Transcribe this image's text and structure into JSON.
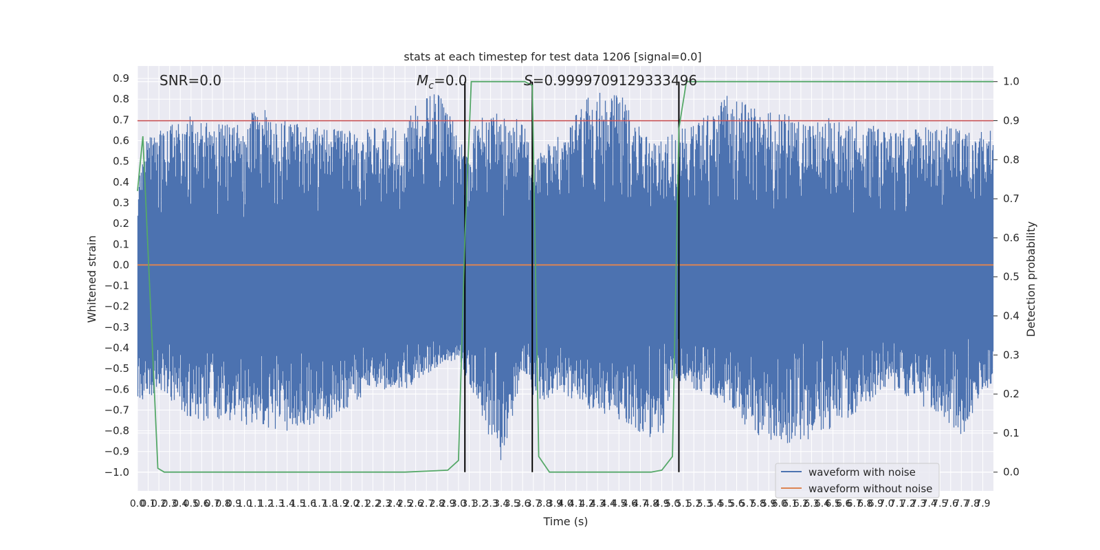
{
  "chart_data": {
    "type": "line",
    "title": "stats at each timestep for test data 1206 [signal=0.0]",
    "xlabel": "Time (s)",
    "ylabel": "Whitened strain",
    "y2label": "Detection probability",
    "xlim": [
      0.0,
      8.0
    ],
    "ylim": [
      -1.09,
      0.96
    ],
    "y2lim": [
      -0.048,
      1.04
    ],
    "x_ticks": [
      0.0,
      0.1,
      0.2,
      0.3,
      0.4,
      0.5,
      0.6,
      0.7,
      0.8,
      0.9,
      1.0,
      1.1,
      1.2,
      1.3,
      1.4,
      1.5,
      1.6,
      1.7,
      1.8,
      1.9,
      2.0,
      2.1,
      2.2,
      2.3,
      2.4,
      2.5,
      2.6,
      2.7,
      2.8,
      2.9,
      3.0,
      3.1,
      3.2,
      3.3,
      3.4,
      3.5,
      3.6,
      3.7,
      3.8,
      3.9,
      4.0,
      4.1,
      4.2,
      4.3,
      4.4,
      4.5,
      4.6,
      4.7,
      4.8,
      4.9,
      5.0,
      5.1,
      5.2,
      5.3,
      5.4,
      5.5,
      5.6,
      5.7,
      5.8,
      5.9,
      6.0,
      6.1,
      6.2,
      6.3,
      6.4,
      6.5,
      6.6,
      6.7,
      6.8,
      6.9,
      7.0,
      7.1,
      7.2,
      7.3,
      7.4,
      7.5,
      7.6,
      7.7,
      7.8,
      7.9
    ],
    "y_ticks": [
      0.9,
      0.8,
      0.7,
      0.6,
      0.5,
      0.4,
      0.3,
      0.2,
      0.1,
      0.0,
      -0.1,
      -0.2,
      -0.3,
      -0.4,
      -0.5,
      -0.6,
      -0.7,
      -0.8,
      -0.9,
      -1.0
    ],
    "y2_ticks": [
      1.0,
      0.9,
      0.8,
      0.7,
      0.6,
      0.5,
      0.4,
      0.3,
      0.2,
      0.1,
      0.0
    ],
    "annotations": {
      "snr": "SNR=0.0",
      "mc_symbol": "M",
      "mc_sub": "c",
      "mc_value": "=0.0",
      "s_symbol": "S",
      "s_value": "=0.9999709129333496"
    },
    "legend": {
      "position": "lower-right",
      "entries": [
        "waveform with noise",
        "waveform without noise"
      ]
    },
    "series": [
      {
        "name": "waveform with noise",
        "color": "#4c72b0",
        "envelope_upper": [
          [
            0.0,
            0.35
          ],
          [
            0.05,
            0.6
          ],
          [
            0.2,
            0.65
          ],
          [
            0.5,
            0.72
          ],
          [
            1.0,
            0.67
          ],
          [
            1.1,
            0.77
          ],
          [
            1.5,
            0.68
          ],
          [
            2.0,
            0.65
          ],
          [
            2.5,
            0.7
          ],
          [
            2.7,
            0.86
          ],
          [
            2.9,
            0.8
          ],
          [
            3.0,
            0.6
          ],
          [
            3.3,
            0.75
          ],
          [
            3.6,
            0.7
          ],
          [
            3.7,
            0.5
          ],
          [
            4.0,
            0.68
          ],
          [
            4.3,
            0.86
          ],
          [
            4.5,
            0.85
          ],
          [
            4.7,
            0.67
          ],
          [
            4.9,
            0.6
          ],
          [
            5.0,
            0.65
          ],
          [
            5.3,
            0.72
          ],
          [
            5.5,
            0.82
          ],
          [
            5.9,
            0.75
          ],
          [
            6.3,
            0.7
          ],
          [
            6.6,
            0.72
          ],
          [
            7.0,
            0.65
          ],
          [
            7.5,
            0.68
          ],
          [
            7.9,
            0.65
          ]
        ],
        "envelope_lower": [
          [
            0.0,
            -0.7
          ],
          [
            0.2,
            -0.6
          ],
          [
            0.5,
            -0.75
          ],
          [
            1.0,
            -0.77
          ],
          [
            1.4,
            -0.8
          ],
          [
            1.8,
            -0.75
          ],
          [
            2.2,
            -0.6
          ],
          [
            2.5,
            -0.6
          ],
          [
            2.8,
            -0.5
          ],
          [
            3.0,
            -0.45
          ],
          [
            3.4,
            -1.0
          ],
          [
            3.6,
            -0.5
          ],
          [
            3.7,
            -0.65
          ],
          [
            4.0,
            -0.65
          ],
          [
            4.5,
            -0.75
          ],
          [
            4.9,
            -0.87
          ],
          [
            5.0,
            -0.55
          ],
          [
            5.2,
            -0.6
          ],
          [
            5.5,
            -0.67
          ],
          [
            5.8,
            -0.84
          ],
          [
            6.2,
            -0.87
          ],
          [
            6.6,
            -0.77
          ],
          [
            7.0,
            -0.6
          ],
          [
            7.5,
            -0.72
          ],
          [
            7.7,
            -0.84
          ],
          [
            7.9,
            -0.6
          ]
        ]
      },
      {
        "name": "waveform without noise",
        "color": "#dd8452",
        "x": [
          0.0,
          8.0
        ],
        "y": [
          0.0,
          0.0
        ]
      },
      {
        "name": "detection probability",
        "color": "#55a868",
        "axis": "right",
        "x": [
          0.0,
          0.05,
          0.19,
          0.25,
          0.5,
          1.0,
          1.5,
          2.0,
          2.5,
          2.9,
          3.0,
          3.06,
          3.12,
          3.2,
          3.5,
          3.62,
          3.69,
          3.75,
          3.85,
          4.0,
          4.5,
          4.8,
          4.9,
          5.0,
          5.06,
          5.13,
          5.5,
          6.0,
          7.0,
          8.0
        ],
        "y": [
          0.72,
          0.86,
          0.01,
          0.0,
          0.0,
          0.0,
          0.0,
          0.0,
          0.0,
          0.005,
          0.03,
          0.6,
          1.0,
          1.0,
          1.0,
          1.0,
          0.99,
          0.04,
          0.0,
          0.0,
          0.0,
          0.0,
          0.005,
          0.04,
          0.88,
          1.0,
          1.0,
          1.0,
          1.0,
          1.0
        ]
      }
    ],
    "threshold": {
      "name": "threshold",
      "y2": 0.9,
      "color": "#c44e52"
    },
    "vertical_markers": [
      3.06,
      3.69,
      5.06
    ]
  }
}
